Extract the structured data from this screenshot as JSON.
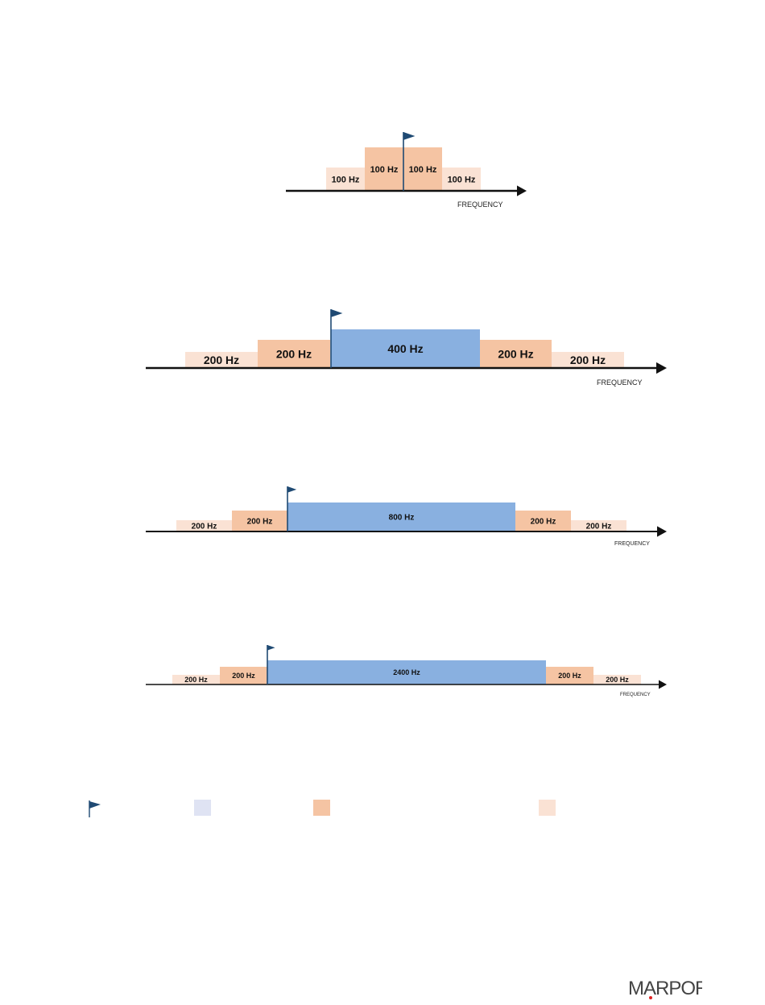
{
  "colors": {
    "deep_peach": "#f5c4a3",
    "light_peach": "#fae2d4",
    "blue": "#89b0e0",
    "legend_blue": "#dfe3f3",
    "flag": "#1f4a73",
    "axis": "#111111"
  },
  "axis_label": "FREQUENCY",
  "diagrams": [
    {
      "id": "d1",
      "bands": [
        {
          "label": "100 Hz",
          "type": "light"
        },
        {
          "label": "100 Hz",
          "type": "deep"
        },
        {
          "label": "100 Hz",
          "type": "deep"
        },
        {
          "label": "100 Hz",
          "type": "light"
        }
      ]
    },
    {
      "id": "d2",
      "bands": [
        {
          "label": "200 Hz",
          "type": "light"
        },
        {
          "label": "200 Hz",
          "type": "deep"
        },
        {
          "label": "400 Hz",
          "type": "blue"
        },
        {
          "label": "200 Hz",
          "type": "deep"
        },
        {
          "label": "200 Hz",
          "type": "light"
        }
      ]
    },
    {
      "id": "d3",
      "bands": [
        {
          "label": "200 Hz",
          "type": "light"
        },
        {
          "label": "200 Hz",
          "type": "deep"
        },
        {
          "label": "800 Hz",
          "type": "blue"
        },
        {
          "label": "200 Hz",
          "type": "deep"
        },
        {
          "label": "200 Hz",
          "type": "light"
        }
      ]
    },
    {
      "id": "d4",
      "bands": [
        {
          "label": "200 Hz",
          "type": "light"
        },
        {
          "label": "200 Hz",
          "type": "deep"
        },
        {
          "label": "2400 Hz",
          "type": "blue"
        },
        {
          "label": "200 Hz",
          "type": "deep"
        },
        {
          "label": "200 Hz",
          "type": "light"
        }
      ]
    }
  ],
  "legend": [
    {
      "icon": "flag-icon"
    },
    {
      "icon": "blue-swatch"
    },
    {
      "icon": "deep-peach-swatch"
    },
    {
      "icon": "light-peach-swatch"
    }
  ],
  "logo_text": "MARPORT"
}
